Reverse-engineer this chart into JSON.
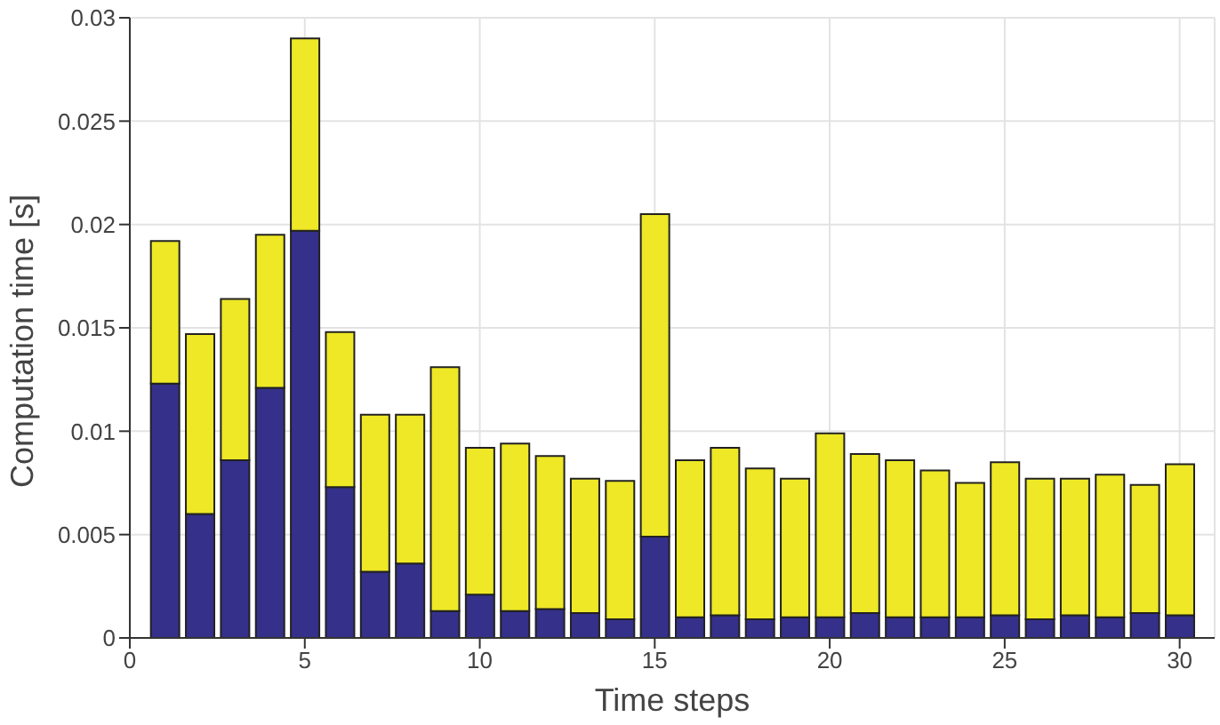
{
  "chart_data": {
    "type": "bar",
    "stacked": true,
    "xlabel": "Time steps",
    "ylabel": "Computation time [s]",
    "x": [
      1,
      2,
      3,
      4,
      5,
      6,
      7,
      8,
      9,
      10,
      11,
      12,
      13,
      14,
      15,
      16,
      17,
      18,
      19,
      20,
      21,
      22,
      23,
      24,
      25,
      26,
      27,
      28,
      29,
      30
    ],
    "series": [
      {
        "color": "#35308a",
        "values": [
          0.0123,
          0.006,
          0.0086,
          0.0121,
          0.0197,
          0.0073,
          0.0032,
          0.0036,
          0.0013,
          0.0021,
          0.0013,
          0.0014,
          0.0012,
          0.0009,
          0.0049,
          0.001,
          0.0011,
          0.0009,
          0.001,
          0.001,
          0.0012,
          0.001,
          0.001,
          0.001,
          0.0011,
          0.0009,
          0.0011,
          0.001,
          0.0012,
          0.0011
        ]
      },
      {
        "color": "#eee826",
        "values": [
          0.0069,
          0.0087,
          0.0078,
          0.0074,
          0.0093,
          0.0075,
          0.0076,
          0.0072,
          0.0118,
          0.0071,
          0.0081,
          0.0074,
          0.0065,
          0.0067,
          0.0156,
          0.0076,
          0.0081,
          0.0073,
          0.0067,
          0.0089,
          0.0077,
          0.0076,
          0.0071,
          0.0065,
          0.0074,
          0.0068,
          0.0066,
          0.0069,
          0.0062,
          0.0073
        ]
      }
    ],
    "xlim": [
      0,
      31
    ],
    "xticks": [
      0,
      5,
      10,
      15,
      20,
      25,
      30
    ],
    "ylim": [
      0,
      0.03
    ],
    "yticks": [
      0,
      0.005,
      0.01,
      0.015,
      0.02,
      0.025,
      0.03
    ],
    "grid": true
  }
}
